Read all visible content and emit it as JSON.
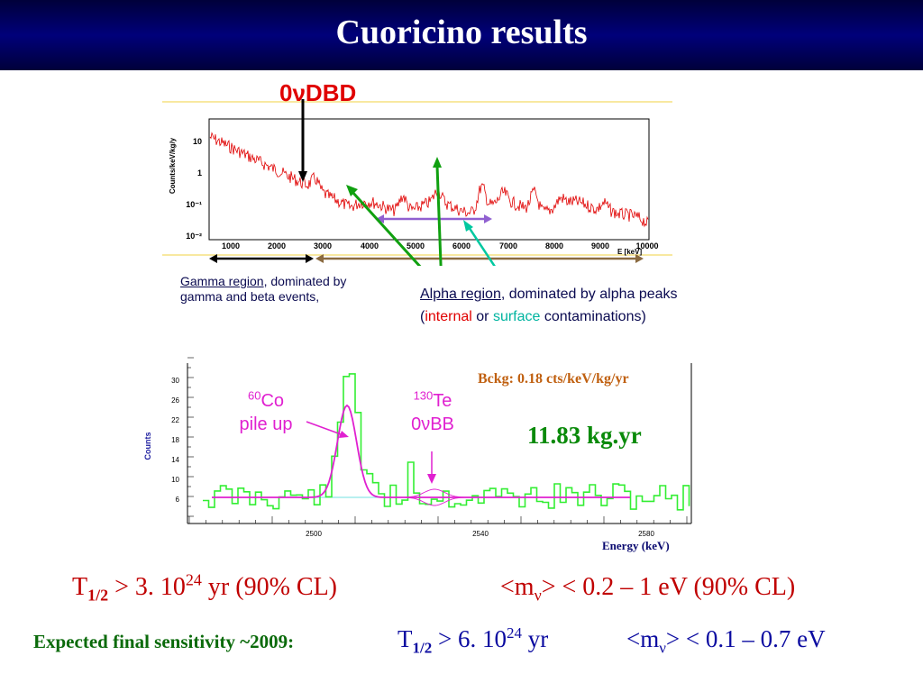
{
  "header": {
    "title": "Cuoricino results"
  },
  "top_plot": {
    "arrow_label": "0νDBD",
    "ylabel": "Counts/keV/kg/y",
    "xlabel": "E [keV]",
    "y_ticks": [
      "10",
      "1",
      "10⁻¹",
      "10⁻²"
    ],
    "x_ticks": [
      "1000",
      "2000",
      "3000",
      "4000",
      "5000",
      "6000",
      "7000",
      "8000",
      "9000",
      "10000"
    ]
  },
  "gamma_note": {
    "name": "Gamma region",
    "rest": ", dominated by gamma and beta events,"
  },
  "alpha_note": {
    "name": "Alpha region",
    "rest": ", dominated by alpha peaks",
    "open": "(",
    "internal": "internal",
    "or": " or ",
    "surface": "surface",
    "close": " contaminations)"
  },
  "bottom_plot": {
    "ylabel": "Counts",
    "y_ticks": [
      "30",
      "26",
      "22",
      "18",
      "14",
      "10",
      "6"
    ],
    "x_ticks": [
      "2500",
      "2540",
      "2580"
    ],
    "bckg": "Bckg: 0.18 cts/keV/kg/yr",
    "exposure": "11.83 kg.yr",
    "co_label_sup": "60",
    "co_label_el": "Co",
    "co_label_2": "pile up",
    "te_label_sup": "130",
    "te_label_el": "Te",
    "te_label_2": "0νBB",
    "xlabel": "Energy (keV)"
  },
  "results": {
    "t_half_sym": "T",
    "t_half_sub": "1/2",
    "t_half_text": " > 3. 10",
    "t_half_exp": "24",
    "t_half_tail": " yr (90% CL)",
    "mass_open": "<m",
    "mass_sub": "ν",
    "mass_text": "> < 0.2 – 1 eV (90% CL)"
  },
  "final": {
    "label": "Expected final sensitivity ~2009:",
    "t_sym": "T",
    "t_sub": "1/2",
    "t_text": " > 6. 10",
    "t_exp": "24",
    "t_tail": " yr",
    "m_open": "<m",
    "m_sub": "ν",
    "m_text": "> < 0.1 – 0.7 eV"
  },
  "colors": {
    "title_bg": "#00005a",
    "spectrum": "#e00000",
    "hist": "#33ee33",
    "fit": "#e020d0"
  }
}
